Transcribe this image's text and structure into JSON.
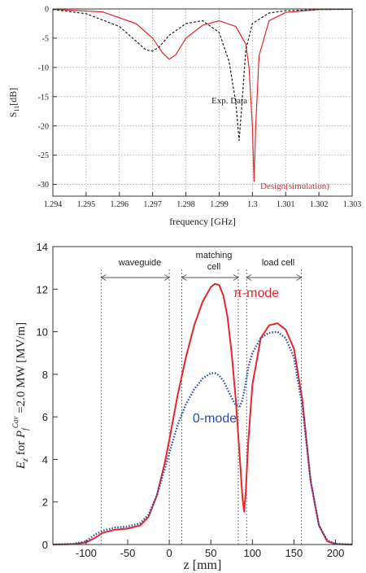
{
  "chart_data": [
    {
      "type": "line",
      "xlabel": "frequency [GHz]",
      "ylabel": "S11[dB]",
      "xlim": [
        1.294,
        1.303
      ],
      "ylim": [
        -32,
        0
      ],
      "grid": true,
      "x_ticks": [
        "1.294",
        "1.295",
        "1.296",
        "1.297",
        "1.298",
        "1.299",
        "1.3",
        "1.301",
        "1.302",
        "1.303"
      ],
      "y_ticks": [
        "0",
        "-5",
        "-10",
        "-15",
        "-20",
        "-25",
        "-30"
      ],
      "series": [
        {
          "name": "Design(simulation)",
          "color": "#e8262b",
          "style": "solid",
          "x": [
            1.294,
            1.2955,
            1.2965,
            1.297,
            1.2973,
            1.2975,
            1.2977,
            1.298,
            1.2985,
            1.299,
            1.2995,
            1.2998,
            1.2999,
            1.3,
            1.30005,
            1.3001,
            1.3002,
            1.3005,
            1.301,
            1.302,
            1.303
          ],
          "y": [
            -0.05,
            -0.5,
            -2.5,
            -5.0,
            -7.5,
            -8.6,
            -7.8,
            -5.0,
            -2.8,
            -2.0,
            -3.0,
            -6.0,
            -10.0,
            -20.0,
            -29.5,
            -20.0,
            -8.0,
            -2.0,
            -0.6,
            -0.1,
            -0.05
          ]
        },
        {
          "name": "Exp. Data",
          "color": "#222222",
          "style": "dashed",
          "x": [
            1.294,
            1.295,
            1.296,
            1.2965,
            1.2968,
            1.297,
            1.2972,
            1.2975,
            1.298,
            1.2985,
            1.299,
            1.2993,
            1.2995,
            1.2996,
            1.2997,
            1.2998,
            1.3,
            1.3005,
            1.301,
            1.302,
            1.303
          ],
          "y": [
            -0.1,
            -0.8,
            -3.0,
            -5.5,
            -7.0,
            -7.2,
            -6.5,
            -4.5,
            -2.5,
            -2.0,
            -4.0,
            -9.0,
            -16.0,
            -22.5,
            -15.0,
            -7.0,
            -2.5,
            -0.7,
            -0.3,
            -0.1,
            -0.05
          ]
        }
      ]
    },
    {
      "type": "line",
      "xlabel": "z [mm]",
      "ylabel": "E_z for P_f^Cav =2.0 MW [MV/m]",
      "xlim": [
        -140,
        220
      ],
      "ylim": [
        0,
        14
      ],
      "x_ticks": [
        "-100",
        "-50",
        "0",
        "50",
        "100",
        "150",
        "200"
      ],
      "y_ticks": [
        "0",
        "2",
        "4",
        "6",
        "8",
        "10",
        "12",
        "14"
      ],
      "region_lines_z": [
        -82,
        0,
        15,
        83,
        93,
        159
      ],
      "regions": [
        {
          "label": "waveguide",
          "from": -82,
          "to": 0
        },
        {
          "label": "matching cell",
          "from": 15,
          "to": 83
        },
        {
          "label": "load cell",
          "from": 93,
          "to": 159
        }
      ],
      "series": [
        {
          "name": "π-mode",
          "color": "#e8262b",
          "style": "solid",
          "x": [
            -140,
            -115,
            -100,
            -90,
            -80,
            -65,
            -50,
            -35,
            -25,
            -15,
            -5,
            0,
            10,
            20,
            30,
            40,
            50,
            55,
            60,
            65,
            70,
            75,
            80,
            85,
            88,
            90,
            92,
            95,
            100,
            110,
            120,
            130,
            140,
            150,
            160,
            170,
            180,
            190,
            200,
            220
          ],
          "y": [
            0.0,
            0.02,
            0.1,
            0.3,
            0.55,
            0.7,
            0.75,
            0.9,
            1.3,
            2.3,
            3.9,
            4.9,
            7.0,
            8.8,
            10.3,
            11.4,
            12.1,
            12.25,
            12.2,
            11.7,
            10.7,
            9.0,
            6.8,
            4.0,
            2.2,
            1.55,
            2.5,
            4.8,
            7.5,
            9.7,
            10.3,
            10.4,
            10.1,
            9.2,
            6.8,
            3.0,
            0.9,
            0.15,
            0.02,
            0.0
          ]
        },
        {
          "name": "0-mode",
          "color": "#2a4fae",
          "style": "dotted",
          "x": [
            -140,
            -115,
            -100,
            -90,
            -80,
            -65,
            -50,
            -35,
            -25,
            -15,
            -5,
            0,
            10,
            20,
            30,
            40,
            50,
            55,
            60,
            65,
            70,
            75,
            80,
            85,
            88,
            92,
            95,
            100,
            110,
            120,
            130,
            140,
            150,
            160,
            170,
            180,
            190,
            200,
            220
          ],
          "y": [
            0.0,
            0.03,
            0.15,
            0.45,
            0.65,
            0.8,
            0.85,
            1.0,
            1.4,
            2.3,
            3.6,
            4.3,
            5.6,
            6.6,
            7.3,
            7.8,
            8.05,
            8.05,
            7.95,
            7.7,
            7.3,
            6.9,
            6.55,
            6.5,
            6.8,
            7.6,
            8.3,
            9.0,
            9.7,
            9.95,
            10.0,
            9.7,
            8.8,
            6.5,
            3.0,
            0.9,
            0.2,
            0.03,
            0.0
          ]
        }
      ]
    }
  ],
  "labels": {
    "top_ylabel": "S11[dB]",
    "top_ylabel_main": "S",
    "top_ylabel_sub": "11",
    "top_ylabel_rest": "[dB]",
    "top_xlabel": "frequency [GHz]",
    "top_exp_label": "Exp. Data",
    "top_design_label": "Design(simulation)",
    "bottom_xlabel": "z [mm]",
    "bottom_ylabel_E": "E",
    "bottom_ylabel_z": "z",
    "bottom_ylabel_for": " for ",
    "bottom_ylabel_P": "P",
    "bottom_ylabel_f": "f",
    "bottom_ylabel_cav": "Cav",
    "bottom_ylabel_rest": " =2.0 MW [MV/m]",
    "waveguide": "waveguide",
    "matching_line1": "matching",
    "matching_line2": "cell",
    "load_cell": "load cell",
    "pi_mode": "π-mode",
    "zero_mode": "0-mode"
  }
}
